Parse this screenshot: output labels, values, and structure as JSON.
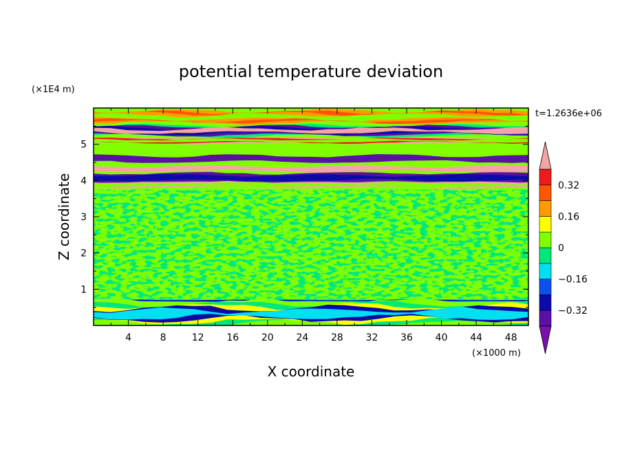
{
  "chart_data": {
    "type": "heatmap",
    "title": "potential temperature deviation",
    "xlabel": "X coordinate",
    "ylabel": "Z coordinate",
    "x_unit": "(×1000 m)",
    "y_unit": "(×1E4 m)",
    "time_label": "t=1.2636e+06",
    "xlim": [
      0,
      50
    ],
    "ylim": [
      0,
      6
    ],
    "x_ticks": [
      4,
      8,
      12,
      16,
      20,
      24,
      28,
      32,
      36,
      40,
      44,
      48
    ],
    "y_ticks": [
      1,
      2,
      3,
      4,
      5
    ],
    "colorbar": {
      "levels": [
        -0.4,
        -0.32,
        -0.24,
        -0.16,
        -0.08,
        0,
        0.08,
        0.16,
        0.24,
        0.32,
        0.4
      ],
      "colors": [
        "#7a11ad",
        "#5a0fa6",
        "#0a0aa8",
        "#0a50f0",
        "#00e0f0",
        "#00e87a",
        "#80ff00",
        "#ffff00",
        "#ff9a00",
        "#ff5500",
        "#ef1a1a",
        "#f4a4a4"
      ],
      "labels": [
        {
          "value": 0.32,
          "text": "0.32"
        },
        {
          "value": 0.16,
          "text": "0.16"
        },
        {
          "value": 0,
          "text": "0"
        },
        {
          "value": -0.16,
          "text": "−0.16"
        },
        {
          "value": -0.32,
          "text": "−0.32"
        }
      ],
      "extend": "both"
    },
    "grid": false,
    "bands": [
      {
        "z0": 5.55,
        "z1": 5.95,
        "colors": [
          "#80ff00",
          "#ff9a00",
          "#ff5500",
          "#ff9a00",
          "#80ff00"
        ]
      },
      {
        "z0": 5.2,
        "z1": 5.55,
        "colors": [
          "#80ff00",
          "#00e87a",
          "#5a0fa6",
          "#0a0aa8",
          "#f4a4a4"
        ]
      },
      {
        "z0": 5.0,
        "z1": 5.2,
        "colors": [
          "#80ff00",
          "#f4a4a4",
          "#ef1a1a",
          "#80ff00"
        ]
      },
      {
        "z0": 4.45,
        "z1": 4.75,
        "colors": [
          "#80ff00",
          "#5a0fa6"
        ]
      },
      {
        "z0": 4.2,
        "z1": 4.45,
        "colors": [
          "#80ff00",
          "#f4a4a4"
        ]
      },
      {
        "z0": 3.95,
        "z1": 4.2,
        "colors": [
          "#5a0fa6",
          "#0a0aa8"
        ]
      },
      {
        "z0": 3.8,
        "z1": 3.95,
        "colors": [
          "#f4a4a4",
          "#80ff00"
        ]
      },
      {
        "z0": 0.65,
        "z1": 0.72,
        "colors": [
          "#00e0f0",
          "#0a0aa8"
        ]
      },
      {
        "z0": 0.0,
        "z1": 0.65,
        "colors": [
          "#80ff00",
          "#00e87a",
          "#ffff00",
          "#0a0aa8",
          "#00e0f0"
        ]
      }
    ]
  }
}
